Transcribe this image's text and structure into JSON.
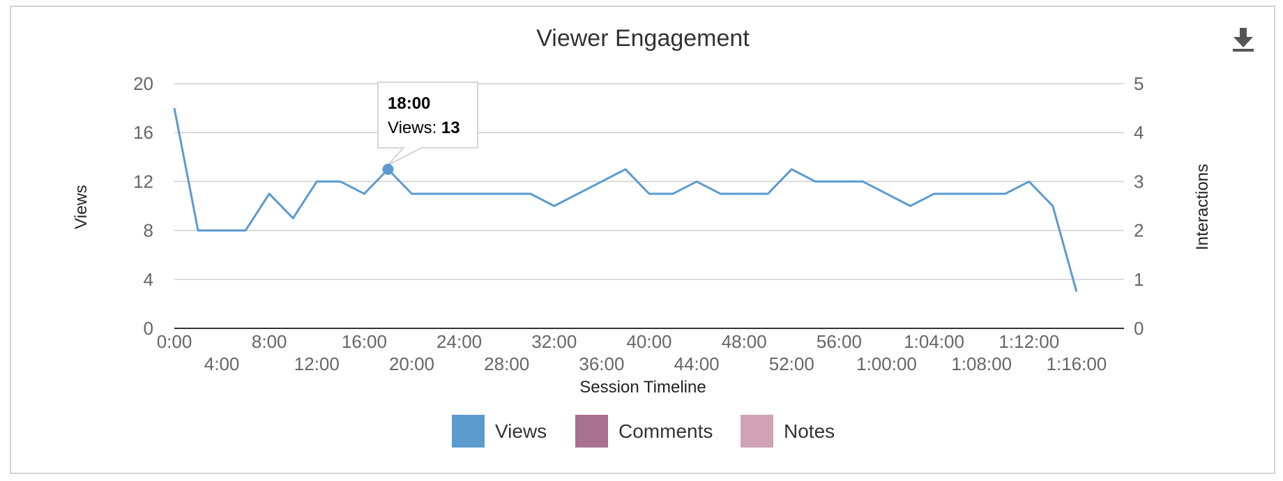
{
  "chart_data": {
    "type": "line",
    "title": "Viewer Engagement",
    "xlabel": "Session Timeline",
    "ylabel": "Views",
    "y2label": "Interactions",
    "ylim": [
      0,
      20
    ],
    "y2lim": [
      0,
      5
    ],
    "yticks": [
      "0",
      "4",
      "8",
      "12",
      "16",
      "20"
    ],
    "y2ticks": [
      "0",
      "1",
      "2",
      "3",
      "4",
      "5"
    ],
    "grid": true,
    "legend_position": "bottom",
    "xticks": [
      "0:00",
      "4:00",
      "8:00",
      "12:00",
      "16:00",
      "20:00",
      "24:00",
      "28:00",
      "32:00",
      "36:00",
      "40:00",
      "44:00",
      "48:00",
      "52:00",
      "56:00",
      "1:00:00",
      "1:04:00",
      "1:08:00",
      "1:12:00",
      "1:16:00"
    ],
    "x_minutes": [
      0,
      2,
      4,
      6,
      8,
      10,
      12,
      14,
      16,
      18,
      20,
      22,
      24,
      26,
      28,
      30,
      32,
      34,
      36,
      38,
      40,
      42,
      44,
      46,
      48,
      50,
      52,
      54,
      56,
      58,
      60,
      62,
      64,
      66,
      68,
      70,
      72,
      74,
      76
    ],
    "series": [
      {
        "name": "Views",
        "color": "#5b9bd0",
        "values": [
          18,
          8,
          8,
          8,
          11,
          9,
          12,
          12,
          11,
          13,
          11,
          11,
          11,
          11,
          11,
          11,
          10,
          11,
          12,
          13,
          11,
          11,
          12,
          11,
          11,
          11,
          13,
          12,
          12,
          12,
          11,
          10,
          11,
          11,
          11,
          11,
          12,
          10,
          3
        ]
      },
      {
        "name": "Comments",
        "color": "#a8718f",
        "values": []
      },
      {
        "name": "Notes",
        "color": "#cfa2b5",
        "values": []
      }
    ],
    "tooltip": {
      "x_label": "18:00",
      "series": "Views",
      "prefix": "Views: ",
      "value": "13",
      "x_minutes": 18,
      "y": 13
    }
  },
  "toolbar": {
    "download_icon": "download-icon"
  }
}
